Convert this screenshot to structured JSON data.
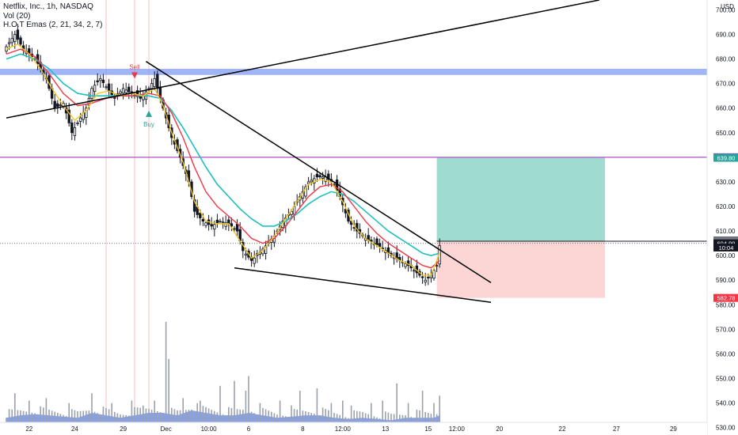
{
  "header": {
    "symbol_line": "Netflix, Inc., 1h, NASDAQ",
    "indicators": [
      "Vol (20)",
      "H.O.T Emas (2, 21, 34, 2, 7)"
    ]
  },
  "currency": "USD",
  "price_axis": {
    "ticks": [
      530,
      540,
      550,
      560,
      570,
      580,
      590,
      600,
      610,
      620,
      630,
      640,
      650,
      660,
      670,
      680,
      690,
      700
    ],
    "range": [
      527,
      704
    ]
  },
  "time_axis": {
    "labels": [
      "22",
      "24",
      "29",
      "Dec",
      "10:00",
      "6",
      "8",
      "12:00",
      "13",
      "15",
      "12:00",
      "20",
      "22",
      "27",
      "29"
    ]
  },
  "price_labels": [
    {
      "text": "640.00",
      "value": 640.0,
      "color": "#9c27b0"
    },
    {
      "text": "639.80",
      "value": 639.8,
      "color": "#26a69a"
    },
    {
      "text": "606.05",
      "value": 606.05,
      "color": "#131722"
    },
    {
      "text": "605.83",
      "value": 605.83,
      "color": "#787b86"
    },
    {
      "text": "604.99",
      "value": 604.99,
      "color": "#131722"
    },
    {
      "text": "10:04",
      "value": 603.3,
      "color": "#131722"
    },
    {
      "text": "582.78",
      "value": 582.78,
      "color": "#f23645"
    }
  ],
  "signals": [
    {
      "label": "Sell",
      "color": "#f23645"
    },
    {
      "label": "Buy",
      "color": "#26a69a"
    }
  ],
  "zones": {
    "resistance_band": {
      "from": 673.5,
      "to": 676.0,
      "color": "#7f9cf5"
    },
    "purple_level": {
      "value": 640.0,
      "color": "#9c27b0"
    },
    "take_profit_color": "#9fdccf",
    "stop_loss_color": "#fcd5d5"
  },
  "colors": {
    "candle": "#131722",
    "ema_fast": "#f5c518",
    "ema_mid": "#f23645",
    "ema_slow": "#1ec0c0",
    "volume_area": "#4f7bf0",
    "volume_bars": "#9aa0ac",
    "trendline": "#000000"
  },
  "chart_data": {
    "type": "candlestick",
    "series_name": "Netflix, Inc., 1h, NASDAQ",
    "price_path": [
      [
        0,
        685
      ],
      [
        3,
        690
      ],
      [
        6,
        684
      ],
      [
        10,
        680
      ],
      [
        14,
        672
      ],
      [
        17,
        660
      ],
      [
        20,
        662
      ],
      [
        23,
        650
      ],
      [
        25,
        654
      ],
      [
        28,
        660
      ],
      [
        30,
        668
      ],
      [
        33,
        672
      ],
      [
        36,
        667
      ],
      [
        38,
        664
      ],
      [
        41,
        668
      ],
      [
        44,
        666
      ],
      [
        47,
        664
      ],
      [
        50,
        668
      ],
      [
        52,
        672
      ],
      [
        55,
        660
      ],
      [
        58,
        648
      ],
      [
        61,
        640
      ],
      [
        64,
        630
      ],
      [
        66,
        618
      ],
      [
        69,
        614
      ],
      [
        72,
        612
      ],
      [
        75,
        614
      ],
      [
        78,
        613
      ],
      [
        81,
        610
      ],
      [
        83,
        602
      ],
      [
        86,
        598
      ],
      [
        88,
        600
      ],
      [
        91,
        604
      ],
      [
        94,
        608
      ],
      [
        97,
        614
      ],
      [
        100,
        618
      ],
      [
        103,
        624
      ],
      [
        106,
        630
      ],
      [
        109,
        632
      ],
      [
        112,
        632
      ],
      [
        115,
        629
      ],
      [
        117,
        624
      ],
      [
        120,
        614
      ],
      [
        123,
        610
      ],
      [
        126,
        607
      ],
      [
        129,
        605
      ],
      [
        132,
        603
      ],
      [
        135,
        600
      ],
      [
        138,
        598
      ],
      [
        141,
        596
      ],
      [
        144,
        593
      ],
      [
        147,
        590
      ],
      [
        149,
        592
      ],
      [
        151,
        596
      ],
      [
        152,
        604
      ]
    ],
    "ema_fast": [
      [
        0,
        684
      ],
      [
        4,
        686
      ],
      [
        8,
        682
      ],
      [
        12,
        676
      ],
      [
        16,
        668
      ],
      [
        20,
        661
      ],
      [
        24,
        655
      ],
      [
        28,
        659
      ],
      [
        32,
        666
      ],
      [
        36,
        667
      ],
      [
        40,
        665
      ],
      [
        44,
        666
      ],
      [
        48,
        665
      ],
      [
        52,
        668
      ],
      [
        55,
        661
      ],
      [
        58,
        650
      ],
      [
        62,
        638
      ],
      [
        66,
        622
      ],
      [
        70,
        614
      ],
      [
        74,
        613
      ],
      [
        78,
        613
      ],
      [
        82,
        606
      ],
      [
        86,
        599
      ],
      [
        90,
        602
      ],
      [
        94,
        608
      ],
      [
        98,
        615
      ],
      [
        102,
        622
      ],
      [
        106,
        629
      ],
      [
        110,
        631
      ],
      [
        114,
        630
      ],
      [
        118,
        622
      ],
      [
        122,
        612
      ],
      [
        126,
        607
      ],
      [
        130,
        604
      ],
      [
        134,
        601
      ],
      [
        138,
        598
      ],
      [
        142,
        596
      ],
      [
        146,
        592
      ],
      [
        149,
        592
      ],
      [
        152,
        601
      ]
    ],
    "ema_mid": [
      [
        0,
        682
      ],
      [
        5,
        684
      ],
      [
        10,
        681
      ],
      [
        15,
        674
      ],
      [
        20,
        666
      ],
      [
        25,
        661
      ],
      [
        30,
        662
      ],
      [
        35,
        664
      ],
      [
        40,
        665
      ],
      [
        45,
        665
      ],
      [
        50,
        666
      ],
      [
        54,
        665
      ],
      [
        58,
        658
      ],
      [
        62,
        648
      ],
      [
        66,
        636
      ],
      [
        70,
        626
      ],
      [
        74,
        620
      ],
      [
        78,
        616
      ],
      [
        82,
        612
      ],
      [
        86,
        607
      ],
      [
        90,
        605
      ],
      [
        94,
        607
      ],
      [
        98,
        612
      ],
      [
        102,
        618
      ],
      [
        106,
        624
      ],
      [
        110,
        628
      ],
      [
        114,
        629
      ],
      [
        118,
        626
      ],
      [
        122,
        620
      ],
      [
        126,
        614
      ],
      [
        130,
        609
      ],
      [
        134,
        605
      ],
      [
        138,
        602
      ],
      [
        142,
        599
      ],
      [
        146,
        596
      ],
      [
        149,
        595
      ],
      [
        152,
        598
      ]
    ],
    "ema_slow": [
      [
        0,
        680
      ],
      [
        5,
        682
      ],
      [
        10,
        680
      ],
      [
        15,
        676
      ],
      [
        20,
        670
      ],
      [
        25,
        666
      ],
      [
        30,
        665
      ],
      [
        35,
        665
      ],
      [
        40,
        665
      ],
      [
        45,
        665
      ],
      [
        50,
        665
      ],
      [
        54,
        664
      ],
      [
        58,
        659
      ],
      [
        62,
        652
      ],
      [
        66,
        644
      ],
      [
        70,
        636
      ],
      [
        74,
        629
      ],
      [
        78,
        624
      ],
      [
        82,
        619
      ],
      [
        86,
        615
      ],
      [
        90,
        612
      ],
      [
        94,
        612
      ],
      [
        98,
        614
      ],
      [
        102,
        617
      ],
      [
        106,
        621
      ],
      [
        110,
        624
      ],
      [
        114,
        626
      ],
      [
        118,
        625
      ],
      [
        122,
        622
      ],
      [
        126,
        618
      ],
      [
        130,
        614
      ],
      [
        134,
        610
      ],
      [
        138,
        607
      ],
      [
        142,
        604
      ],
      [
        146,
        601
      ],
      [
        149,
        600
      ],
      [
        152,
        601
      ]
    ],
    "volume": {
      "area": [
        [
          0,
          534
        ],
        [
          5,
          535
        ],
        [
          10,
          535.5
        ],
        [
          15,
          535
        ],
        [
          20,
          534.5
        ],
        [
          25,
          534
        ],
        [
          30,
          536
        ],
        [
          35,
          535
        ],
        [
          40,
          534
        ],
        [
          45,
          535
        ],
        [
          50,
          536
        ],
        [
          55,
          536
        ],
        [
          60,
          535
        ],
        [
          65,
          537
        ],
        [
          70,
          536
        ],
        [
          75,
          535
        ],
        [
          80,
          535
        ],
        [
          85,
          536
        ],
        [
          90,
          535
        ],
        [
          95,
          534
        ],
        [
          100,
          534.5
        ],
        [
          105,
          535
        ],
        [
          110,
          535
        ],
        [
          115,
          534
        ],
        [
          120,
          533.5
        ],
        [
          125,
          534
        ],
        [
          130,
          533.5
        ],
        [
          135,
          533
        ],
        [
          140,
          534
        ],
        [
          145,
          534
        ],
        [
          150,
          534
        ],
        [
          152,
          535
        ]
      ],
      "spikes": [
        [
          3,
          544
        ],
        [
          8,
          541
        ],
        [
          14,
          542
        ],
        [
          22,
          540
        ],
        [
          30,
          544
        ],
        [
          37,
          540
        ],
        [
          44,
          541
        ],
        [
          48,
          539
        ],
        [
          52,
          541
        ],
        [
          56,
          573
        ],
        [
          57,
          558
        ],
        [
          62,
          542
        ],
        [
          68,
          541
        ],
        [
          75,
          547
        ],
        [
          80,
          549
        ],
        [
          84,
          545
        ],
        [
          85,
          551
        ],
        [
          89,
          540
        ],
        [
          96,
          541
        ],
        [
          100,
          539
        ],
        [
          103,
          545
        ],
        [
          109,
          546
        ],
        [
          114,
          540
        ],
        [
          118,
          541
        ],
        [
          121,
          539
        ],
        [
          128,
          540
        ],
        [
          132,
          541
        ],
        [
          137,
          548
        ],
        [
          141,
          540
        ],
        [
          146,
          545
        ],
        [
          150,
          540
        ],
        [
          152,
          543
        ]
      ]
    },
    "trendlines": [
      {
        "name": "rising-support",
        "from": [
          0,
          656
        ],
        "to": [
          208,
          704
        ]
      },
      {
        "name": "descending-resistance",
        "from": [
          49,
          679
        ],
        "to": [
          170,
          589
        ]
      },
      {
        "name": "lower-wedge",
        "from": [
          80,
          595
        ],
        "to": [
          170,
          581
        ]
      }
    ],
    "position": {
      "entry": 605.83,
      "target": 639.8,
      "stop": 582.78,
      "from_bar": 151,
      "to_bar": 210
    },
    "signals_at": [
      {
        "label": "Sell",
        "bar": 45,
        "value": 672
      },
      {
        "label": "Buy",
        "bar": 50,
        "value": 659
      }
    ],
    "last_price": 604.99,
    "xlabel": "",
    "ylabel": ""
  }
}
